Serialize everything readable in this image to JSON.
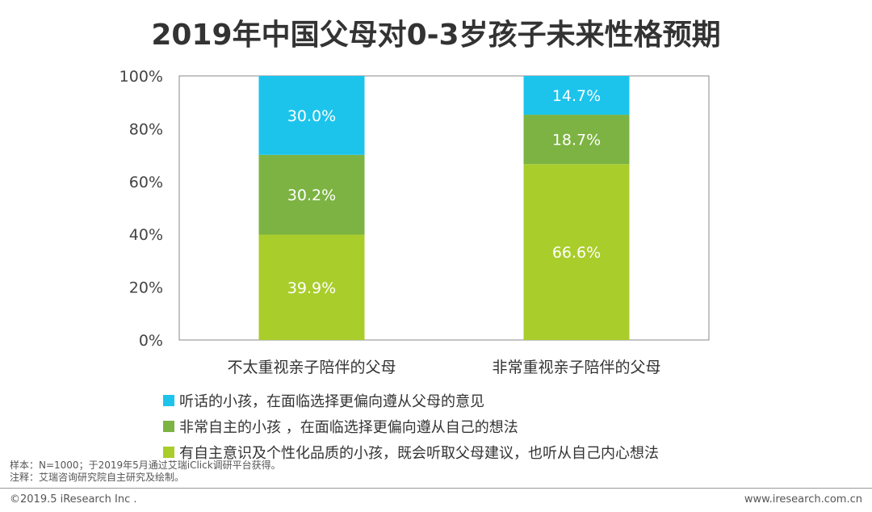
{
  "title": "2019年中国父母对0-3岁孩子未来性格预期",
  "chart_data": {
    "type": "bar",
    "stacked": true,
    "categories": [
      "不太重视亲子陪伴的父母",
      "非常重视亲子陪伴的父母"
    ],
    "series": [
      {
        "name": "有自主意识及个性化品质的小孩，既会听取父母建议，也听从自己内心想法",
        "values": [
          39.9,
          66.6
        ],
        "labels": [
          "39.9%",
          "66.6%"
        ],
        "color": "#a9cd2b"
      },
      {
        "name": "非常自主的小孩 ，在面临选择更偏向遵从自己的想法",
        "values": [
          30.2,
          18.7
        ],
        "labels": [
          "30.2%",
          "18.7%"
        ],
        "color": "#7cb342"
      },
      {
        "name": "听话的小孩，在面临选择更偏向遵从父母的意见",
        "values": [
          30.0,
          14.7
        ],
        "labels": [
          "30.0%",
          "14.7%"
        ],
        "color": "#1cc4ec"
      }
    ],
    "ylim": [
      0,
      100
    ],
    "yticks": [
      "0%",
      "20%",
      "40%",
      "60%",
      "80%",
      "100%"
    ],
    "legend": [
      {
        "label": "听话的小孩，在面临选择更偏向遵从父母的意见",
        "color": "#1cc4ec"
      },
      {
        "label": "非常自主的小孩 ，在面临选择更偏向遵从自己的想法",
        "color": "#7cb342"
      },
      {
        "label": "有自主意识及个性化品质的小孩，既会听取父母建议，也听从自己内心想法",
        "color": "#a9cd2b"
      }
    ],
    "legend_position": "bottom"
  },
  "notes": {
    "sample": "样本：N=1000；于2019年5月通过艾瑞iClick调研平台获得。",
    "source": "注释：艾瑞咨询研究院自主研究及绘制。"
  },
  "footer": {
    "copyright": "©2019.5 iResearch Inc .",
    "website": "www.iresearch.com.cn"
  }
}
